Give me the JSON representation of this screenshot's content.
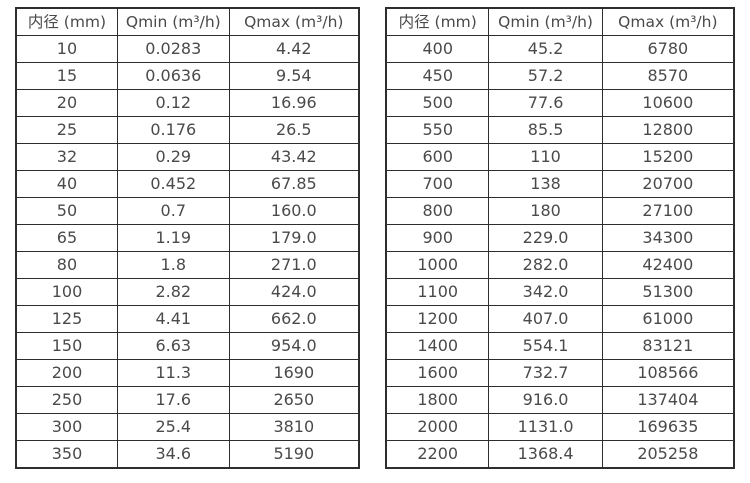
{
  "page": {
    "background_color": "#ffffff",
    "border_color": "#2e2e2e",
    "text_color": "#4a4a4a"
  },
  "tables": [
    {
      "name": "flow-spec-table-small-diameters",
      "columns": [
        "内径 (mm)",
        "Qmin (m³/h)",
        "Qmax (m³/h)"
      ],
      "rows": [
        [
          "10",
          "0.0283",
          "4.42"
        ],
        [
          "15",
          "0.0636",
          "9.54"
        ],
        [
          "20",
          "0.12",
          "16.96"
        ],
        [
          "25",
          "0.176",
          "26.5"
        ],
        [
          "32",
          "0.29",
          "43.42"
        ],
        [
          "40",
          "0.452",
          "67.85"
        ],
        [
          "50",
          "0.7",
          "160.0"
        ],
        [
          "65",
          "1.19",
          "179.0"
        ],
        [
          "80",
          "1.8",
          "271.0"
        ],
        [
          "100",
          "2.82",
          "424.0"
        ],
        [
          "125",
          "4.41",
          "662.0"
        ],
        [
          "150",
          "6.63",
          "954.0"
        ],
        [
          "200",
          "11.3",
          "1690"
        ],
        [
          "250",
          "17.6",
          "2650"
        ],
        [
          "300",
          "25.4",
          "3810"
        ],
        [
          "350",
          "34.6",
          "5190"
        ]
      ]
    },
    {
      "name": "flow-spec-table-large-diameters",
      "columns": [
        "内径 (mm)",
        "Qmin (m³/h)",
        "Qmax (m³/h)"
      ],
      "rows": [
        [
          "400",
          "45.2",
          "6780"
        ],
        [
          "450",
          "57.2",
          "8570"
        ],
        [
          "500",
          "77.6",
          "10600"
        ],
        [
          "550",
          "85.5",
          "12800"
        ],
        [
          "600",
          "110",
          "15200"
        ],
        [
          "700",
          "138",
          "20700"
        ],
        [
          "800",
          "180",
          "27100"
        ],
        [
          "900",
          "229.0",
          "34300"
        ],
        [
          "1000",
          "282.0",
          "42400"
        ],
        [
          "1100",
          "342.0",
          "51300"
        ],
        [
          "1200",
          "407.0",
          "61000"
        ],
        [
          "1400",
          "554.1",
          "83121"
        ],
        [
          "1600",
          "732.7",
          "108566"
        ],
        [
          "1800",
          "916.0",
          "137404"
        ],
        [
          "2000",
          "1131.0",
          "169635"
        ],
        [
          "2200",
          "1368.4",
          "205258"
        ]
      ]
    }
  ]
}
